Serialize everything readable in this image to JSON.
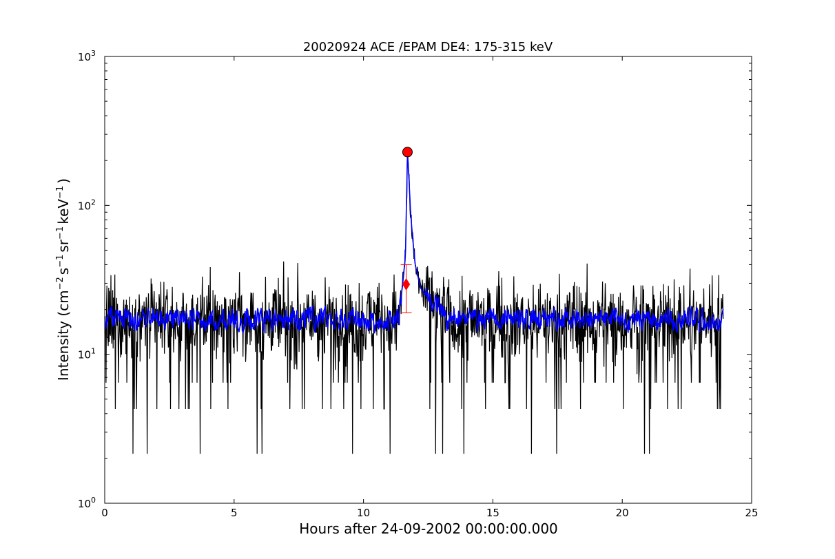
{
  "chart_data": {
    "type": "line",
    "title": "20020924 ACE /EPAM DE4: 175-315 keV",
    "xlabel": "Hours after 24-09-2002 00:00:00.000",
    "ylabel_parts": {
      "prefix": "Intensity (cm",
      "exp1": "−2",
      "s": "s",
      "exp2": "−1",
      "sr": "sr",
      "exp3": "−1",
      "kev": "keV",
      "exp4": "−1",
      "suffix": ")"
    },
    "xlim": [
      0,
      25
    ],
    "ylim": [
      1,
      1000
    ],
    "yscale": "log",
    "grid": false,
    "x_ticks": [
      {
        "value": 0,
        "label": "0"
      },
      {
        "value": 5,
        "label": "5"
      },
      {
        "value": 10,
        "label": "10"
      },
      {
        "value": 15,
        "label": "15"
      },
      {
        "value": 20,
        "label": "20"
      },
      {
        "value": 25,
        "label": "25"
      }
    ],
    "y_ticks": [
      {
        "value": 1,
        "base": "10",
        "exp": "0"
      },
      {
        "value": 10,
        "base": "10",
        "exp": "1"
      },
      {
        "value": 100,
        "base": "10",
        "exp": "2"
      },
      {
        "value": 1000,
        "base": "10",
        "exp": "3"
      }
    ],
    "series": [
      {
        "color": "#000000",
        "style": "raw",
        "x_range": [
          0,
          23.9
        ],
        "noise_floor": [
          4.3,
          30
        ],
        "spike_value": 2.15,
        "background_level": 17
      },
      {
        "color": "#0000ff",
        "style": "smoothed",
        "x_range": [
          0,
          23.9
        ],
        "background_level": 17
      }
    ],
    "event_profile": [
      {
        "x": 11.35,
        "y": 18
      },
      {
        "x": 11.5,
        "y": 28
      },
      {
        "x": 11.62,
        "y": 45
      },
      {
        "x": 11.7,
        "y": 228
      },
      {
        "x": 11.75,
        "y": 160
      },
      {
        "x": 11.82,
        "y": 90
      },
      {
        "x": 11.9,
        "y": 60
      },
      {
        "x": 12.0,
        "y": 40
      },
      {
        "x": 12.2,
        "y": 28
      },
      {
        "x": 12.6,
        "y": 22
      },
      {
        "x": 13.2,
        "y": 18
      }
    ],
    "markers": [
      {
        "type": "circle",
        "x": 11.7,
        "y": 228,
        "color": "#ff0000"
      },
      {
        "type": "diamond",
        "x": 11.65,
        "y": 29.5,
        "color": "#ff0000",
        "err_low": 19,
        "err_high": 40
      }
    ]
  }
}
